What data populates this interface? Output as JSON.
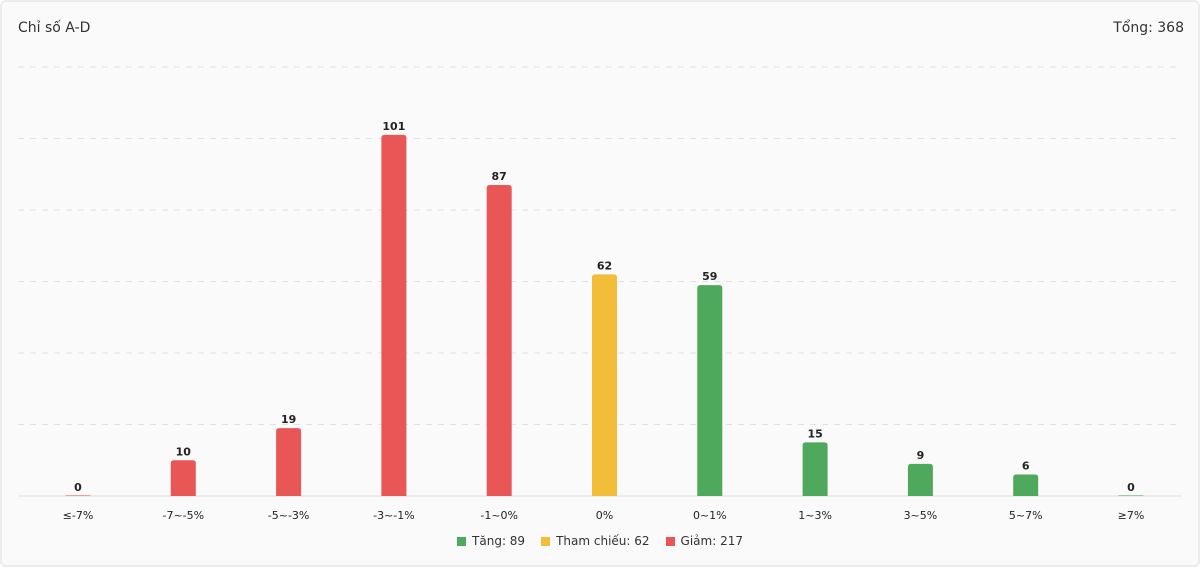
{
  "header": {
    "title": "Chỉ số A-D",
    "total": "Tổng: 368"
  },
  "colors": {
    "down": "#e95656",
    "reference": "#f2bd38",
    "up": "#4fa95d",
    "grid": "#e2e2e2",
    "baseline": "#ebd9d9"
  },
  "chart_data": {
    "type": "bar",
    "title": "Chỉ số A-D",
    "xlabel": "",
    "ylabel": "",
    "ylim": [
      0,
      120
    ],
    "grid": true,
    "legend_position": "bottom",
    "categories": [
      "≤-7%",
      "-7~-5%",
      "-5~-3%",
      "-3~-1%",
      "-1~0%",
      "0%",
      "0~1%",
      "1~3%",
      "3~5%",
      "5~7%",
      "≥7%"
    ],
    "values": [
      0,
      10,
      19,
      101,
      87,
      62,
      59,
      15,
      9,
      6,
      0
    ],
    "bar_groups": [
      "down",
      "down",
      "down",
      "down",
      "down",
      "reference",
      "up",
      "up",
      "up",
      "up",
      "up"
    ],
    "value_labels": [
      "0",
      "10",
      "19",
      "101",
      "87",
      "62",
      "59",
      "15",
      "9",
      "6",
      "0"
    ],
    "legend": [
      {
        "key": "up",
        "label": "Tăng: 89"
      },
      {
        "key": "reference",
        "label": "Tham chiếu: 62"
      },
      {
        "key": "down",
        "label": "Giảm: 217"
      }
    ]
  }
}
